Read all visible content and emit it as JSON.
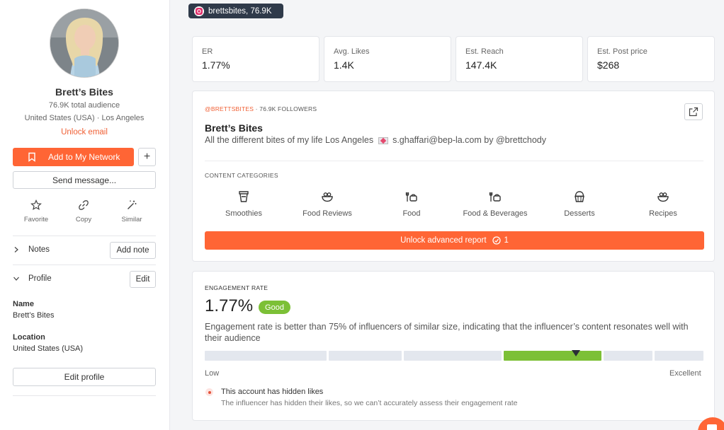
{
  "profile": {
    "name": "Brett’s Bites",
    "audience": "76.9K total audience",
    "location": "United States (USA) · Los Angeles",
    "unlock_email": "Unlock email"
  },
  "actions": {
    "add_network": "Add to My Network",
    "send_message": "Send message...",
    "favorite": "Favorite",
    "copy": "Copy",
    "similar": "Similar"
  },
  "sections": {
    "notes_label": "Notes",
    "add_note": "Add note",
    "profile_label": "Profile",
    "edit": "Edit",
    "name_label": "Name",
    "name_value": "Brett’s Bites",
    "location_label": "Location",
    "location_value": "United States (USA)",
    "edit_profile": "Edit profile"
  },
  "account_badge": "brettsbites,  76.9K",
  "stats": [
    {
      "label": "ER",
      "value": "1.77%"
    },
    {
      "label": "Avg. Likes",
      "value": "1.4K"
    },
    {
      "label": "Est. Reach",
      "value": "147.4K"
    },
    {
      "label": "Est. Post price",
      "value": "$268"
    }
  ],
  "bio_card": {
    "handle": "@BRETTSBITES",
    "followers": " · 76.9K FOLLOWERS",
    "name": "Brett’s Bites",
    "bio_before": "All the different bites of my life Los Angeles",
    "bio_after": "s.ghaffari@bep-la.com by @brettchody",
    "categories_title": "CONTENT CATEGORIES",
    "categories": [
      {
        "label": "Smoothies",
        "icon": "smoothie-icon"
      },
      {
        "label": "Food Reviews",
        "icon": "food-bowl-icon"
      },
      {
        "label": "Food",
        "icon": "food-icon"
      },
      {
        "label": "Food & Beverages",
        "icon": "food-beverage-icon"
      },
      {
        "label": "Desserts",
        "icon": "cupcake-icon"
      },
      {
        "label": "Recipes",
        "icon": "recipe-bowl-icon"
      }
    ],
    "unlock_report": "Unlock advanced report",
    "unlock_cost": "1"
  },
  "engagement": {
    "title": "ENGAGEMENT RATE",
    "value": "1.77%",
    "badge": "Good",
    "description": "Engagement rate is better than 75% of influencers of similar size, indicating that the influencer’s content resonates well with their audience",
    "low": "Low",
    "excellent": "Excellent",
    "hint_title": "This account has hidden likes",
    "hint_sub": "The influencer has hidden their likes, so we can’t accurately assess their engagement rate"
  },
  "colors": {
    "accent": "#ff6535",
    "good": "#7cc036",
    "badge_bg": "#2f3a4a"
  }
}
